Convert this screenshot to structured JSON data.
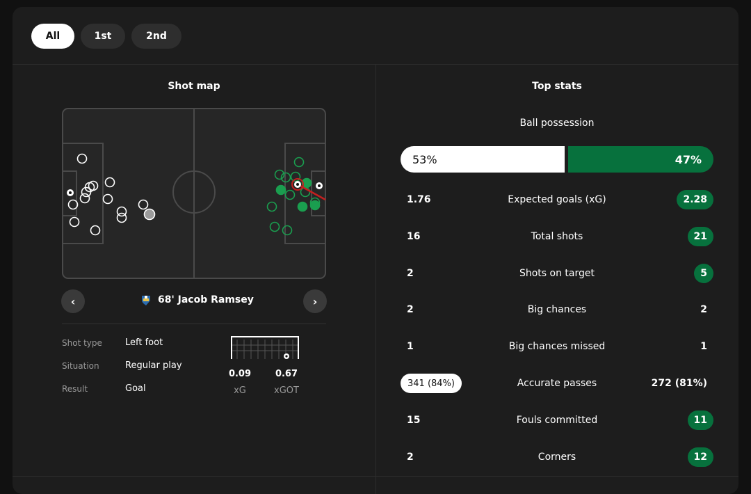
{
  "tabs": [
    {
      "label": "All",
      "active": true
    },
    {
      "label": "1st",
      "active": false
    },
    {
      "label": "2nd",
      "active": false
    }
  ],
  "shot_map": {
    "title": "Shot map",
    "selected_shot": {
      "minute_player": "68' Jacob Ramsey",
      "details": [
        {
          "label": "Shot type",
          "value": "Left foot"
        },
        {
          "label": "Situation",
          "value": "Regular play"
        },
        {
          "label": "Result",
          "value": "Goal"
        }
      ],
      "xg": {
        "value": "0.09",
        "label": "xG"
      },
      "xgot": {
        "value": "0.67",
        "label": "xGOT"
      }
    }
  },
  "top_stats": {
    "title": "Top stats",
    "possession": {
      "label": "Ball possession",
      "home": "53%",
      "away": "47%"
    },
    "rows": [
      {
        "home": "1.76",
        "label": "Expected goals (xG)",
        "away": "2.28",
        "highlight": "away"
      },
      {
        "home": "16",
        "label": "Total shots",
        "away": "21",
        "highlight": "away"
      },
      {
        "home": "2",
        "label": "Shots on target",
        "away": "5",
        "highlight": "away"
      },
      {
        "home": "2",
        "label": "Big chances",
        "away": "2",
        "highlight": "none"
      },
      {
        "home": "1",
        "label": "Big chances missed",
        "away": "1",
        "highlight": "none"
      },
      {
        "home": "341 (84%)",
        "label": "Accurate passes",
        "away": "272 (81%)",
        "highlight": "home"
      },
      {
        "home": "15",
        "label": "Fouls committed",
        "away": "11",
        "highlight": "away"
      },
      {
        "home": "2",
        "label": "Corners",
        "away": "12",
        "highlight": "away"
      }
    ]
  },
  "colors": {
    "background": "#111111",
    "card": "#1d1d1d",
    "away_team": "#07713d",
    "away_shot_ring": "#1a9e4f",
    "home_team": "#ffffff"
  },
  "icons": {
    "prev": "chevron-left-icon",
    "next": "chevron-right-icon",
    "goal_marker": "football-icon",
    "team_crest": "newcastle-crest-icon"
  }
}
